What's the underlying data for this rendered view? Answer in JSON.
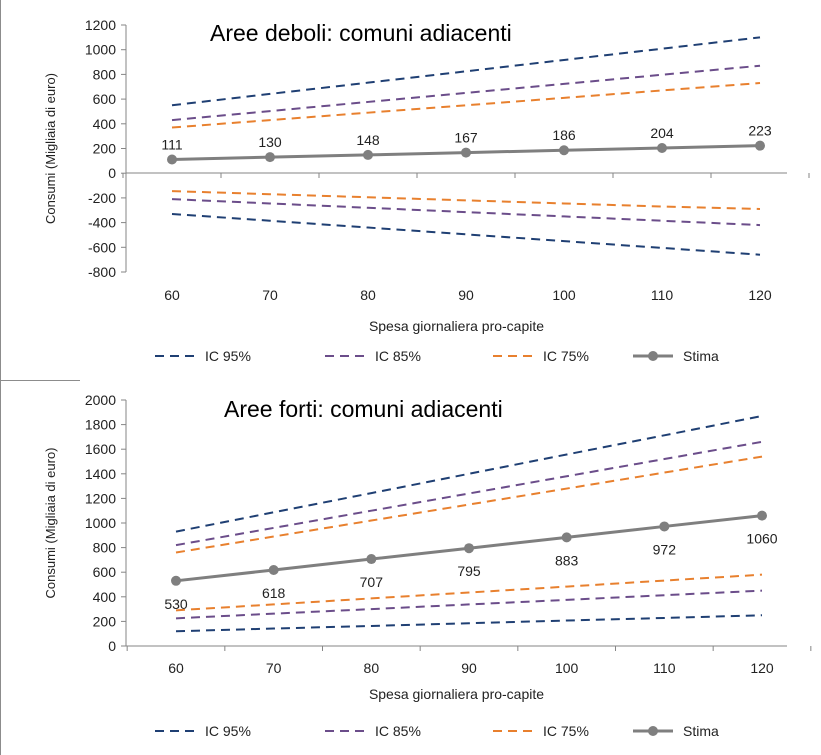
{
  "chart_data": [
    {
      "type": "line",
      "title": "Aree deboli: comuni adiacenti",
      "xlabel": "Spesa giornaliera pro-capite",
      "ylabel": "Consumi (Migliaia di euro)",
      "x": [
        60,
        70,
        80,
        90,
        100,
        110,
        120
      ],
      "ylim": [
        -800,
        1200
      ],
      "yticks": [
        -800,
        -600,
        -400,
        -200,
        0,
        200,
        400,
        600,
        800,
        1000,
        1200
      ],
      "grid": false,
      "legend": "bottom",
      "series": [
        {
          "name": "IC 95%",
          "style": "dashed",
          "color": "#1f3f73",
          "values": [
            550,
            642,
            733,
            825,
            917,
            1008,
            1100
          ]
        },
        {
          "name": "IC 85%",
          "style": "dashed",
          "color": "#6b4d8a",
          "values": [
            430,
            503,
            577,
            650,
            723,
            797,
            870
          ]
        },
        {
          "name": "IC 75%",
          "style": "dashed",
          "color": "#e8802e",
          "values": [
            370,
            430,
            490,
            550,
            610,
            670,
            730
          ]
        },
        {
          "name": "Stima",
          "style": "solid-marker",
          "color": "#7f7f7f",
          "values": [
            111,
            130,
            148,
            167,
            186,
            204,
            223
          ],
          "labels": [
            "111",
            "130",
            "148",
            "167",
            "186",
            "204",
            "223"
          ]
        },
        {
          "name": "IC 95%",
          "style": "dashed",
          "color": "#1f3f73",
          "legend": false,
          "values": [
            -330,
            -385,
            -440,
            -495,
            -550,
            -605,
            -660
          ]
        },
        {
          "name": "IC 85%",
          "style": "dashed",
          "color": "#6b4d8a",
          "legend": false,
          "values": [
            -210,
            -245,
            -280,
            -315,
            -350,
            -385,
            -420
          ]
        },
        {
          "name": "IC 75%",
          "style": "dashed",
          "color": "#e8802e",
          "legend": false,
          "values": [
            -145,
            -170,
            -195,
            -220,
            -245,
            -270,
            -290
          ]
        }
      ]
    },
    {
      "type": "line",
      "title": "Aree forti: comuni adiacenti",
      "xlabel": "Spesa giornaliera pro-capite",
      "ylabel": "Consumi (Migliaia di euro)",
      "x": [
        60,
        70,
        80,
        90,
        100,
        110,
        120
      ],
      "ylim": [
        0,
        2000
      ],
      "yticks": [
        0,
        200,
        400,
        600,
        800,
        1000,
        1200,
        1400,
        1600,
        1800,
        2000
      ],
      "grid": false,
      "legend": "bottom",
      "series": [
        {
          "name": "IC 95%",
          "style": "dashed",
          "color": "#1f3f73",
          "values": [
            930,
            1087,
            1243,
            1400,
            1557,
            1713,
            1870
          ]
        },
        {
          "name": "IC 85%",
          "style": "dashed",
          "color": "#6b4d8a",
          "values": [
            820,
            960,
            1100,
            1240,
            1380,
            1520,
            1660
          ]
        },
        {
          "name": "IC 75%",
          "style": "dashed",
          "color": "#e8802e",
          "values": [
            760,
            890,
            1020,
            1150,
            1280,
            1410,
            1540
          ]
        },
        {
          "name": "Stima",
          "style": "solid-marker",
          "color": "#7f7f7f",
          "values": [
            530,
            618,
            707,
            795,
            883,
            972,
            1060
          ],
          "labels": [
            "530",
            "618",
            "707",
            "795",
            "883",
            "972",
            "1060"
          ]
        },
        {
          "name": "IC 75%",
          "style": "dashed",
          "color": "#e8802e",
          "legend": false,
          "values": [
            290,
            338,
            387,
            435,
            483,
            532,
            580
          ]
        },
        {
          "name": "IC 85%",
          "style": "dashed",
          "color": "#6b4d8a",
          "legend": false,
          "values": [
            225,
            263,
            300,
            338,
            375,
            413,
            450
          ]
        },
        {
          "name": "IC 95%",
          "style": "dashed",
          "color": "#1f3f73",
          "legend": false,
          "values": [
            120,
            142,
            163,
            185,
            207,
            228,
            250
          ]
        }
      ]
    }
  ]
}
